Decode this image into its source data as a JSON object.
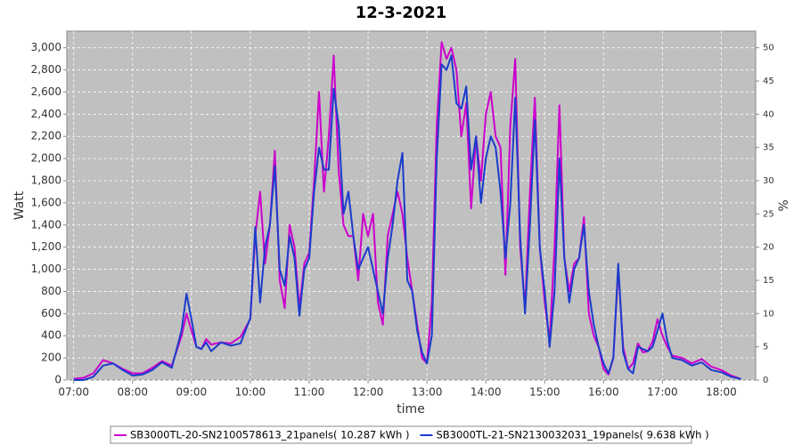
{
  "chart_data": {
    "type": "line",
    "title": "12-3-2021",
    "x_label": "time",
    "y_label": "Watt",
    "y2_label": "%",
    "x": [
      "07:00",
      "07:10",
      "07:20",
      "07:30",
      "07:40",
      "07:50",
      "08:00",
      "08:10",
      "08:20",
      "08:30",
      "08:40",
      "08:50",
      "08:55",
      "09:00",
      "09:05",
      "09:10",
      "09:15",
      "09:20",
      "09:30",
      "09:40",
      "09:50",
      "10:00",
      "10:05",
      "10:10",
      "10:15",
      "10:20",
      "10:25",
      "10:30",
      "10:35",
      "10:40",
      "10:45",
      "10:50",
      "10:55",
      "11:00",
      "11:05",
      "11:10",
      "11:15",
      "11:20",
      "11:25",
      "11:30",
      "11:35",
      "11:40",
      "11:45",
      "11:50",
      "11:55",
      "12:00",
      "12:05",
      "12:10",
      "12:15",
      "12:20",
      "12:25",
      "12:30",
      "12:35",
      "12:40",
      "12:45",
      "12:50",
      "12:55",
      "13:00",
      "13:05",
      "13:10",
      "13:15",
      "13:20",
      "13:25",
      "13:30",
      "13:35",
      "13:40",
      "13:45",
      "13:50",
      "13:55",
      "14:00",
      "14:05",
      "14:10",
      "14:15",
      "14:20",
      "14:25",
      "14:30",
      "14:35",
      "14:40",
      "14:45",
      "14:50",
      "14:55",
      "15:00",
      "15:05",
      "15:10",
      "15:15",
      "15:20",
      "15:25",
      "15:30",
      "15:35",
      "15:40",
      "15:45",
      "15:50",
      "15:55",
      "16:00",
      "16:05",
      "16:10",
      "16:15",
      "16:20",
      "16:25",
      "16:30",
      "16:35",
      "16:40",
      "16:45",
      "16:50",
      "16:55",
      "17:00",
      "17:05",
      "17:10",
      "17:20",
      "17:30",
      "17:40",
      "17:50",
      "18:00",
      "18:10",
      "18:20"
    ],
    "series": [
      {
        "name": "SB3000TL-20-SN2100578613_21panels( 10.287 kWh )",
        "color": "#cc00cc",
        "values": [
          10,
          20,
          60,
          180,
          150,
          100,
          60,
          60,
          110,
          170,
          130,
          400,
          600,
          450,
          300,
          280,
          370,
          320,
          340,
          330,
          390,
          550,
          1300,
          1700,
          1050,
          1400,
          2070,
          900,
          650,
          1400,
          1200,
          650,
          1050,
          1150,
          1800,
          2600,
          1700,
          2200,
          2930,
          1900,
          1400,
          1300,
          1300,
          900,
          1500,
          1300,
          1500,
          700,
          500,
          1300,
          1500,
          1700,
          1500,
          1100,
          800,
          500,
          200,
          150,
          700,
          2300,
          3050,
          2900,
          3000,
          2800,
          2200,
          2500,
          1550,
          2200,
          1800,
          2400,
          2600,
          2200,
          2100,
          950,
          2300,
          2900,
          1200,
          650,
          1700,
          2550,
          1200,
          700,
          350,
          1200,
          2480,
          1100,
          800,
          1050,
          1100,
          1470,
          600,
          400,
          300,
          100,
          50,
          200,
          1000,
          300,
          100,
          150,
          330,
          250,
          260,
          350,
          550,
          400,
          300,
          220,
          200,
          150,
          190,
          120,
          90,
          40,
          10
        ]
      },
      {
        "name": "SB3000TL-21-SN2130032031_19panels( 9.638 kWh )",
        "color": "#1a3ccc",
        "values": [
          0,
          0,
          30,
          130,
          150,
          90,
          40,
          50,
          90,
          160,
          110,
          450,
          780,
          550,
          300,
          280,
          340,
          260,
          340,
          310,
          330,
          560,
          1380,
          700,
          1200,
          1400,
          1930,
          1000,
          850,
          1300,
          1100,
          580,
          1000,
          1100,
          1700,
          2100,
          1900,
          1900,
          2630,
          2300,
          1500,
          1700,
          1300,
          1000,
          1100,
          1200,
          1000,
          800,
          600,
          1100,
          1400,
          1800,
          2050,
          900,
          800,
          450,
          250,
          150,
          400,
          2000,
          2850,
          2800,
          2930,
          2500,
          2450,
          2650,
          1900,
          2200,
          1600,
          2000,
          2200,
          2100,
          1700,
          1100,
          1600,
          2550,
          1300,
          600,
          1400,
          2350,
          1200,
          800,
          300,
          800,
          2000,
          1100,
          700,
          1000,
          1100,
          1400,
          800,
          500,
          300,
          150,
          60,
          200,
          1050,
          250,
          100,
          60,
          300,
          280,
          260,
          300,
          450,
          600,
          350,
          200,
          180,
          130,
          160,
          90,
          70,
          30,
          10
        ]
      }
    ],
    "xlim": [
      "06:53",
      "18:35"
    ],
    "xticks": [
      "07:00",
      "08:00",
      "09:00",
      "10:00",
      "11:00",
      "12:00",
      "13:00",
      "14:00",
      "15:00",
      "16:00",
      "17:00",
      "18:00"
    ],
    "ylim": [
      0,
      3150
    ],
    "yticks": [
      0,
      200,
      400,
      600,
      800,
      {
        "value": 1000,
        "label": "1,000"
      },
      {
        "value": 1200,
        "label": "1,200"
      },
      {
        "value": 1400,
        "label": "1,400"
      },
      {
        "value": 1600,
        "label": "1,600"
      },
      {
        "value": 1800,
        "label": "1,800"
      },
      {
        "value": 2000,
        "label": "2,000"
      },
      {
        "value": 2200,
        "label": "2,200"
      },
      {
        "value": 2400,
        "label": "2,400"
      },
      {
        "value": 2600,
        "label": "2,600"
      },
      {
        "value": 2800,
        "label": "2,800"
      },
      {
        "value": 3000,
        "label": "3,000"
      }
    ],
    "y2lim": [
      0,
      52.5
    ],
    "y2ticks": [
      0,
      5,
      10,
      15,
      20,
      25,
      30,
      35,
      40,
      45,
      50
    ],
    "grid": true,
    "legend": "bottom"
  }
}
